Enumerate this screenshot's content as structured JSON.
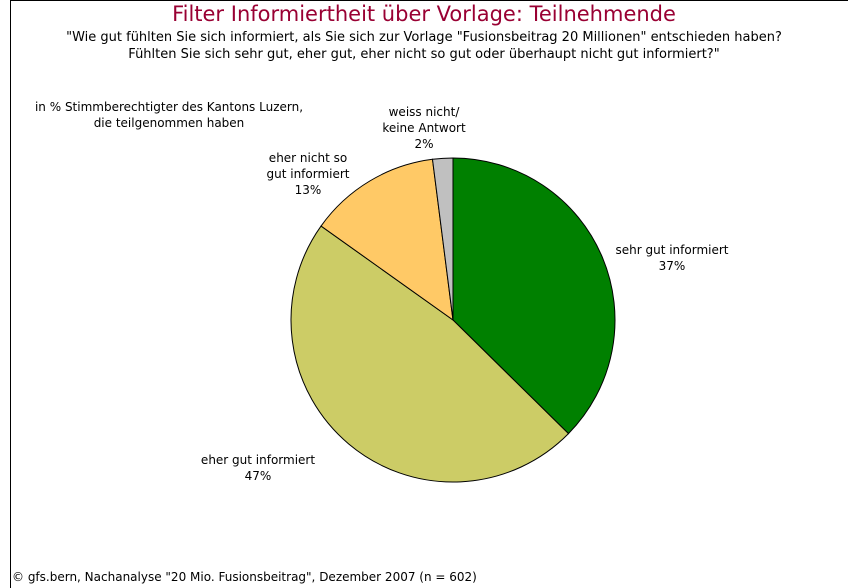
{
  "chart_data": {
    "type": "pie",
    "title": "Filter Informiertheit über Vorlage: Teilnehmende",
    "subtitle": "\"Wie gut fühlten Sie sich informiert, als Sie sich zur Vorlage \"Fusionsbeitrag 20 Millionen\" entschieden haben?\nFühlten Sie sich sehr gut, eher gut, eher nicht so gut oder überhaupt nicht gut informiert?\"",
    "annotation": "in % Stimmberechtigter des Kantons Luzern,\ndie teilgenommen haben",
    "source": "© gfs.bern, Nachanalyse \"20 Mio. Fusionsbeitrag\", Dezember 2007 (n = 602)",
    "categories": [
      "sehr gut informiert",
      "eher gut informiert",
      "eher nicht so\ngut informiert",
      "weiss nicht/\nkeine Antwort"
    ],
    "values": [
      37,
      47,
      13,
      2
    ],
    "value_labels": [
      "37%",
      "47%",
      "13%",
      "2%"
    ],
    "colors": [
      "#008000",
      "#cccc66",
      "#ffc966",
      "#c0c0c0"
    ]
  }
}
